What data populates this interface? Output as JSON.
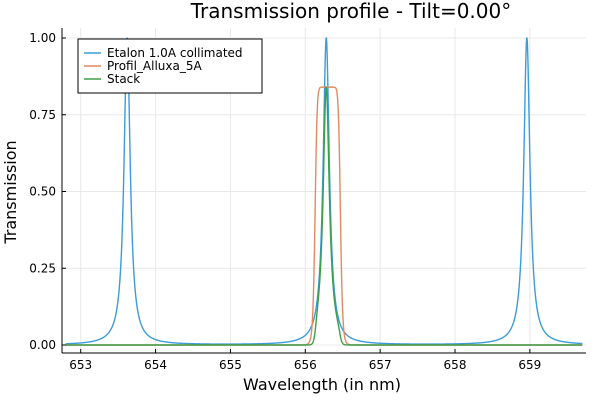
{
  "chart_data": {
    "type": "line",
    "title": "Transmission profile - Tilt=0.00°",
    "xlabel": "Wavelength (in nm)",
    "ylabel": "Transmission",
    "xlim": [
      652.75,
      659.75
    ],
    "ylim": [
      0,
      1
    ],
    "x_ticks": [
      653,
      654,
      655,
      656,
      657,
      658,
      659
    ],
    "y_ticks": [
      0,
      0.25,
      0.5,
      0.75,
      1
    ],
    "x_tick_labels": [
      "653",
      "654",
      "655",
      "656",
      "657",
      "658",
      "659"
    ],
    "y_tick_labels": [
      "0.00",
      "0.25",
      "0.50",
      "0.75",
      "1.00"
    ],
    "grid": true,
    "legend_position": "top-left",
    "series": [
      {
        "name": "Etalon 1.0A collimated",
        "color": "#3d9bd8",
        "kind": "periodic-lorentzian",
        "peak_centers": [
          653.62,
          656.28,
          658.96
        ],
        "peak_height": 1,
        "fwhm": 0.1
      },
      {
        "name": "Profil_Alluxa_5A",
        "color": "#e08a61",
        "kind": "bandpass",
        "center": 656.3,
        "peak_height": 0.84,
        "fwhm": 0.34
      },
      {
        "name": "Stack",
        "color": "#3c9e4a",
        "kind": "product",
        "center": 656.28,
        "peak_height": 0.84
      }
    ]
  }
}
